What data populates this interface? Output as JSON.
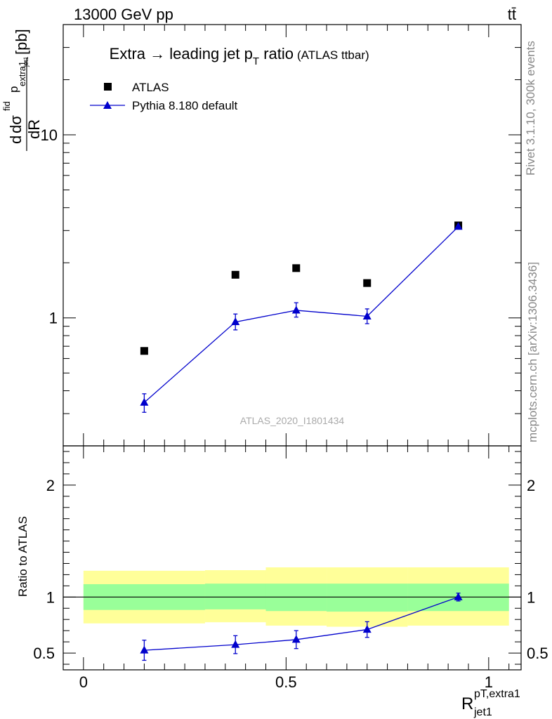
{
  "header": {
    "left": "13000 GeV pp",
    "right": "tt̄"
  },
  "side_labels": {
    "rivet": "Rivet 3.1.10,  300k events",
    "mcplots": "mcplots.cern.ch [arXiv:1306.3436]"
  },
  "chart_data": [
    {
      "type": "scatter",
      "title": "Extra → leading jet p",
      "title_sub": "T",
      "title_tail": " ratio",
      "title_note": "(ATLAS ttbar)",
      "ylabel": {
        "d1": "d",
        "sigma": "dσ",
        "fid": "fid",
        "p": "p",
        "extra": "extra1",
        "den": "dR",
        "jet": "jet1",
        "unit": "[pb]"
      },
      "yscale": "log",
      "ylim": [
        0.2,
        40
      ],
      "xlim": [
        -0.05,
        1.08
      ],
      "y_ticks": [
        {
          "value": 1,
          "label": "1"
        },
        {
          "value": 10,
          "label": "10"
        }
      ],
      "watermark": "ATLAS_2020_I1801434",
      "legend_position": "top-left",
      "series": [
        {
          "name": "ATLAS",
          "marker": "square",
          "color": "#000000",
          "x": [
            0.15,
            0.375,
            0.525,
            0.7,
            0.925
          ],
          "y": [
            0.66,
            1.72,
            1.87,
            1.55,
            3.2
          ]
        },
        {
          "name": "Pythia 8.180 default",
          "marker": "triangle",
          "color": "#0000cc",
          "x": [
            0.15,
            0.375,
            0.525,
            0.7,
            0.925
          ],
          "y": [
            0.345,
            0.95,
            1.1,
            1.02,
            3.15
          ],
          "yerr_low": [
            0.04,
            0.09,
            0.09,
            0.09,
            0.09
          ],
          "yerr_high": [
            0.04,
            0.1,
            0.11,
            0.1,
            0.09
          ]
        }
      ]
    },
    {
      "type": "scatter",
      "ylabel": "Ratio to ATLAS",
      "ylim": [
        0.35,
        2.35
      ],
      "xlim": [
        -0.05,
        1.08
      ],
      "y_ticks": [
        {
          "value": 0.5,
          "label": "0.5"
        },
        {
          "value": 1,
          "label": "1"
        },
        {
          "value": 2,
          "label": "2"
        }
      ],
      "x_ticks": [
        {
          "value": 0,
          "label": "0"
        },
        {
          "value": 0.5,
          "label": "0.5"
        },
        {
          "value": 1,
          "label": "1"
        }
      ],
      "xlabel": {
        "base": "R",
        "sup": "pT,extra1",
        "sub": "jet1"
      },
      "bands": [
        {
          "x0": 0.0,
          "x1": 0.3,
          "y_yellow": [
            0.765,
            1.235
          ],
          "y_green": [
            0.885,
            1.115
          ]
        },
        {
          "x0": 0.3,
          "x1": 0.45,
          "y_yellow": [
            0.775,
            1.24
          ],
          "y_green": [
            0.89,
            1.12
          ]
        },
        {
          "x0": 0.45,
          "x1": 0.6,
          "y_yellow": [
            0.745,
            1.265
          ],
          "y_green": [
            0.875,
            1.12
          ]
        },
        {
          "x0": 0.6,
          "x1": 0.8,
          "y_yellow": [
            0.735,
            1.265
          ],
          "y_green": [
            0.87,
            1.12
          ]
        },
        {
          "x0": 0.8,
          "x1": 1.05,
          "y_yellow": [
            0.745,
            1.265
          ],
          "y_green": [
            0.875,
            1.12
          ]
        }
      ],
      "band_colors": {
        "yellow": "#ffff99",
        "green": "#99ff99"
      },
      "series": [
        {
          "name": "Pythia 8.180 default",
          "marker": "triangle",
          "color": "#0000cc",
          "x": [
            0.15,
            0.375,
            0.525,
            0.7,
            0.925
          ],
          "y": [
            0.525,
            0.575,
            0.62,
            0.71,
            1.0
          ],
          "yerr_low": [
            0.09,
            0.08,
            0.08,
            0.07,
            0.035
          ],
          "yerr_high": [
            0.09,
            0.08,
            0.08,
            0.07,
            0.035
          ]
        }
      ]
    }
  ]
}
